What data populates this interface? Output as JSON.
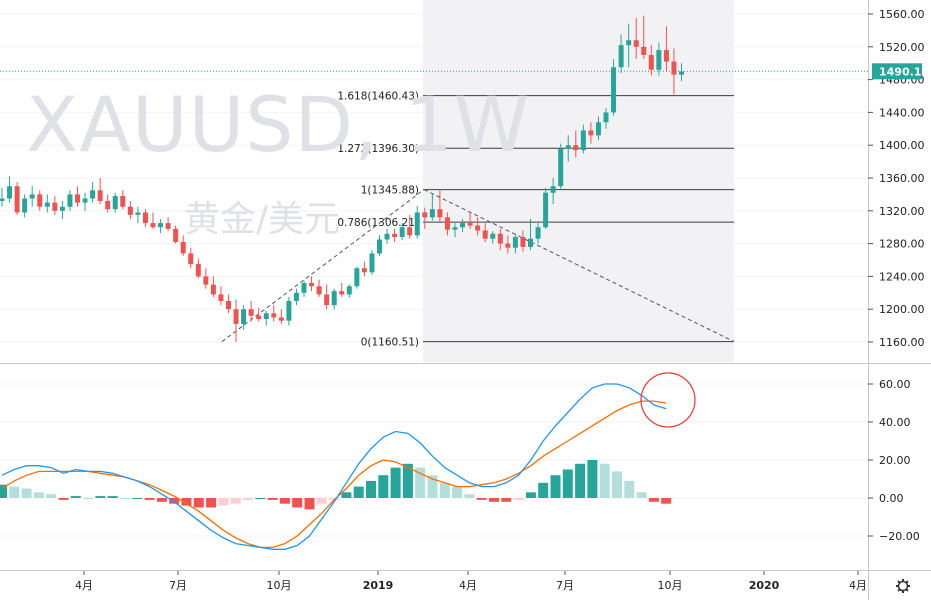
{
  "watermark": {
    "symbol": "XAUUSD, 1W",
    "description": "黄金/美元"
  },
  "price_axis": {
    "ticks": [
      "1560.00",
      "1520.00",
      "1480.00",
      "1440.00",
      "1400.00",
      "1360.00",
      "1320.00",
      "1280.00",
      "1240.00",
      "1200.00",
      "1160.00"
    ]
  },
  "macd_axis": {
    "ticks": [
      "60.00",
      "40.00",
      "20.00",
      "0.00",
      "−20.00"
    ]
  },
  "time_axis": {
    "labels": [
      "4月",
      "7月",
      "10月",
      "2019",
      "4月",
      "7月",
      "10月",
      "2020",
      "4月"
    ]
  },
  "last_price": {
    "value": "1490.12",
    "color": "#26a69a"
  },
  "fib": {
    "levels": [
      {
        "label": "1.618(1460.43)",
        "price": 1460.43
      },
      {
        "label": "1.272(1396.30)",
        "price": 1396.3
      },
      {
        "label": "1(1345.88)",
        "price": 1345.88
      },
      {
        "label": "0.786(1306.21)",
        "price": 1306.21
      },
      {
        "label": "0(1160.51)",
        "price": 1160.51
      }
    ]
  },
  "colors": {
    "up": "#26a69a",
    "down": "#ef5350",
    "macd": "#2196f3",
    "signal": "#ff6d00",
    "annotation": "#e53935"
  },
  "chart_data": [
    {
      "type": "candlestick",
      "title": "",
      "series": [
        {
          "name": "XAUUSD",
          "ohlc_weekly": [
            [
              1332,
              1348,
              1325,
              1335
            ],
            [
              1335,
              1362,
              1330,
              1350
            ],
            [
              1350,
              1355,
              1315,
              1318
            ],
            [
              1318,
              1340,
              1312,
              1335
            ],
            [
              1335,
              1350,
              1325,
              1340
            ],
            [
              1340,
              1345,
              1320,
              1325
            ],
            [
              1325,
              1340,
              1318,
              1330
            ],
            [
              1330,
              1338,
              1315,
              1320
            ],
            [
              1320,
              1332,
              1310,
              1325
            ],
            [
              1325,
              1345,
              1320,
              1340
            ],
            [
              1340,
              1350,
              1325,
              1330
            ],
            [
              1330,
              1342,
              1320,
              1335
            ],
            [
              1335,
              1355,
              1330,
              1345
            ],
            [
              1345,
              1360,
              1328,
              1332
            ],
            [
              1332,
              1340,
              1318,
              1322
            ],
            [
              1322,
              1342,
              1318,
              1338
            ],
            [
              1338,
              1345,
              1322,
              1325
            ],
            [
              1325,
              1332,
              1310,
              1315
            ],
            [
              1315,
              1325,
              1305,
              1318
            ],
            [
              1318,
              1322,
              1300,
              1305
            ],
            [
              1305,
              1318,
              1298,
              1300
            ],
            [
              1300,
              1310,
              1293,
              1305
            ],
            [
              1305,
              1312,
              1295,
              1298
            ],
            [
              1298,
              1302,
              1280,
              1282
            ],
            [
              1282,
              1290,
              1265,
              1268
            ],
            [
              1268,
              1275,
              1250,
              1255
            ],
            [
              1255,
              1262,
              1238,
              1240
            ],
            [
              1240,
              1250,
              1225,
              1230
            ],
            [
              1230,
              1240,
              1215,
              1218
            ],
            [
              1218,
              1228,
              1205,
              1210
            ],
            [
              1210,
              1218,
              1195,
              1200
            ],
            [
              1200,
              1212,
              1160,
              1182
            ],
            [
              1182,
              1205,
              1175,
              1200
            ],
            [
              1200,
              1210,
              1185,
              1192
            ],
            [
              1192,
              1202,
              1185,
              1188
            ],
            [
              1188,
              1198,
              1180,
              1195
            ],
            [
              1195,
              1205,
              1185,
              1190
            ],
            [
              1190,
              1200,
              1182,
              1186
            ],
            [
              1186,
              1215,
              1180,
              1210
            ],
            [
              1210,
              1225,
              1205,
              1220
            ],
            [
              1220,
              1235,
              1215,
              1232
            ],
            [
              1232,
              1240,
              1222,
              1228
            ],
            [
              1228,
              1236,
              1215,
              1218
            ],
            [
              1218,
              1230,
              1200,
              1205
            ],
            [
              1205,
              1225,
              1200,
              1222
            ],
            [
              1222,
              1232,
              1215,
              1218
            ],
            [
              1218,
              1230,
              1214,
              1228
            ],
            [
              1228,
              1252,
              1225,
              1250
            ],
            [
              1250,
              1258,
              1240,
              1245
            ],
            [
              1245,
              1272,
              1242,
              1268
            ],
            [
              1268,
              1290,
              1265,
              1285
            ],
            [
              1285,
              1298,
              1280,
              1292
            ],
            [
              1292,
              1298,
              1282,
              1288
            ],
            [
              1288,
              1305,
              1284,
              1300
            ],
            [
              1300,
              1315,
              1286,
              1290
            ],
            [
              1290,
              1326,
              1286,
              1318
            ],
            [
              1318,
              1324,
              1298,
              1312
            ],
            [
              1312,
              1340,
              1308,
              1322
            ],
            [
              1322,
              1346,
              1305,
              1312
            ],
            [
              1312,
              1318,
              1290,
              1297
            ],
            [
              1297,
              1305,
              1288,
              1300
            ],
            [
              1300,
              1310,
              1294,
              1305
            ],
            [
              1305,
              1318,
              1298,
              1302
            ],
            [
              1302,
              1312,
              1290,
              1296
            ],
            [
              1296,
              1305,
              1282,
              1286
            ],
            [
              1286,
              1295,
              1280,
              1292
            ],
            [
              1292,
              1298,
              1272,
              1280
            ],
            [
              1280,
              1290,
              1268,
              1275
            ],
            [
              1275,
              1292,
              1268,
              1288
            ],
            [
              1288,
              1296,
              1270,
              1276
            ],
            [
              1276,
              1310,
              1272,
              1286
            ],
            [
              1286,
              1305,
              1280,
              1300
            ],
            [
              1300,
              1348,
              1298,
              1342
            ],
            [
              1342,
              1360,
              1328,
              1350
            ],
            [
              1350,
              1402,
              1345,
              1396
            ],
            [
              1396,
              1412,
              1380,
              1400
            ],
            [
              1400,
              1418,
              1385,
              1394
            ],
            [
              1394,
              1425,
              1390,
              1418
            ],
            [
              1418,
              1428,
              1402,
              1412
            ],
            [
              1412,
              1435,
              1406,
              1428
            ],
            [
              1428,
              1445,
              1420,
              1440
            ],
            [
              1440,
              1505,
              1436,
              1495
            ],
            [
              1495,
              1535,
              1488,
              1522
            ],
            [
              1522,
              1548,
              1495,
              1528
            ],
            [
              1528,
              1555,
              1505,
              1520
            ],
            [
              1520,
              1558,
              1505,
              1510
            ],
            [
              1510,
              1522,
              1485,
              1492
            ],
            [
              1492,
              1525,
              1485,
              1516
            ],
            [
              1516,
              1545,
              1490,
              1502
            ],
            [
              1502,
              1518,
              1462,
              1486
            ],
            [
              1486,
              1500,
              1478,
              1490
            ]
          ]
        }
      ],
      "ylim": [
        1145,
        1573
      ]
    },
    {
      "type": "macd",
      "title": "",
      "series": [
        {
          "name": "MACD",
          "values": [
            12,
            15,
            17,
            17,
            16,
            13,
            15,
            14,
            14,
            13,
            11,
            9,
            6,
            2,
            -2,
            -7,
            -12,
            -17,
            -21,
            -24,
            -25,
            -26,
            -27,
            -27,
            -25,
            -20,
            -11,
            -2,
            8,
            18,
            26,
            32,
            35,
            34,
            29,
            22,
            16,
            12,
            8,
            6,
            6,
            8,
            12,
            20,
            30,
            38,
            45,
            52,
            58,
            60,
            60,
            58,
            54,
            49,
            47
          ]
        },
        {
          "name": "Signal",
          "values": [
            5,
            9,
            12,
            14,
            14,
            14,
            14,
            14,
            13,
            12,
            11,
            9,
            7,
            4,
            1,
            -3,
            -7,
            -12,
            -17,
            -21,
            -24,
            -26,
            -26,
            -24,
            -20,
            -14,
            -8,
            -1,
            5,
            12,
            17,
            20,
            19,
            16,
            13,
            10,
            8,
            6,
            6,
            7,
            8,
            10,
            13,
            17,
            22,
            26,
            30,
            34,
            38,
            42,
            46,
            49,
            51,
            51,
            50
          ]
        },
        {
          "name": "Histogram",
          "values": [
            7,
            6,
            5,
            3,
            2,
            -1,
            1,
            0,
            1,
            1,
            0,
            0,
            -1,
            -2,
            -3,
            -4,
            -5,
            -5,
            -4,
            -3,
            -1,
            0,
            -1,
            -3,
            -5,
            -6,
            -3,
            -1,
            3,
            6,
            9,
            12,
            16,
            18,
            16,
            12,
            8,
            6,
            2,
            -1,
            -2,
            -2,
            -1,
            3,
            8,
            12,
            15,
            18,
            20,
            18,
            14,
            9,
            3,
            -2,
            -3
          ]
        }
      ],
      "ylim": [
        -32,
        68
      ]
    }
  ]
}
